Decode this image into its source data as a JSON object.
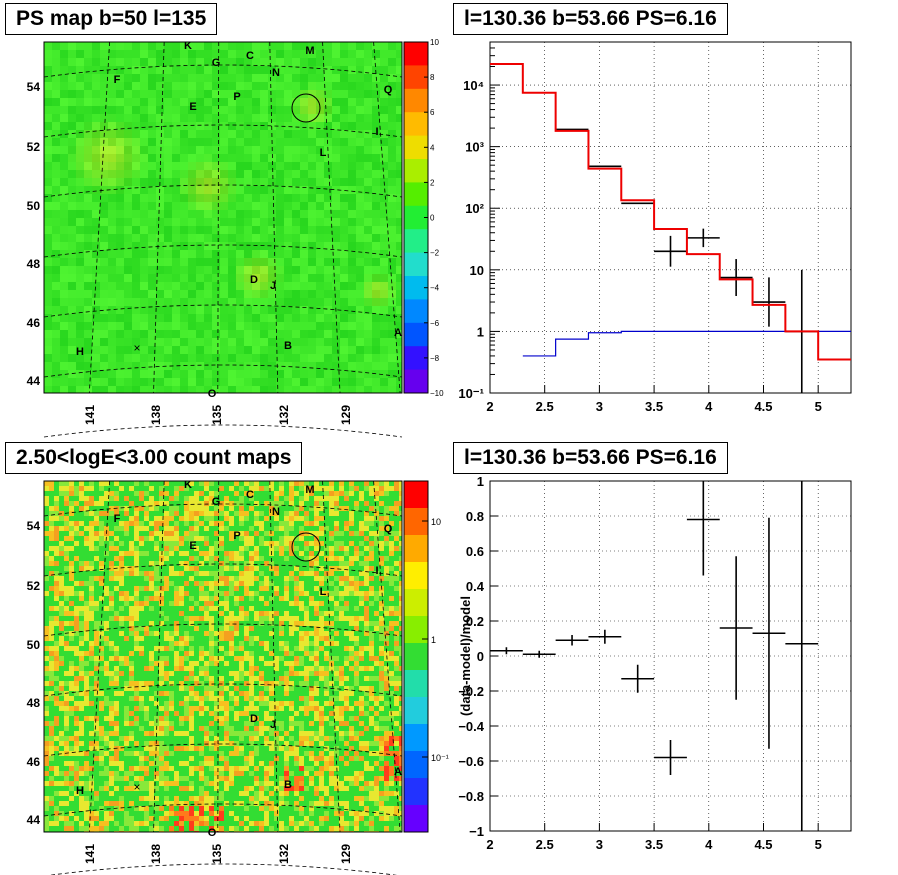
{
  "titles": {
    "tl": "PS map b=50 l=135",
    "tr": "l=130.36 b=53.66 PS=6.16",
    "bl": "2.50<logE<3.00 count maps",
    "br": "l=130.36 b=53.66 PS=6.16"
  },
  "maps": {
    "ylabels": [
      "54",
      "52",
      "50",
      "48",
      "46",
      "44"
    ],
    "xlabels": [
      "141",
      "138",
      "135",
      "132",
      "129"
    ],
    "sources": [
      "K",
      "G",
      "C",
      "M",
      "F",
      "N",
      "E",
      "P",
      "Q",
      "I",
      "L",
      "D",
      "J",
      "A",
      "H",
      "B",
      "O"
    ],
    "marker_x": "×",
    "ps_colorbar_labels": [
      "10",
      "8",
      "6",
      "4",
      "2",
      "0",
      "−2",
      "−4",
      "−6",
      "−8",
      "−10"
    ],
    "count_colorbar_labels": [
      "10",
      "1",
      "10⁻¹"
    ]
  },
  "colors": {
    "ps_map_base": "#33dd33",
    "data_series": "#000000",
    "model_series": "#ee0000",
    "background_series": "#0000cc"
  },
  "chart_data": [
    {
      "type": "heatmap",
      "title": "PS map b=50 l=135",
      "xlabel": "",
      "ylabel": "",
      "zlim": [
        -10,
        10
      ],
      "grid": true
    },
    {
      "type": "line",
      "title": "l=130.36 b=53.66 PS=6.16",
      "xlabel": "",
      "ylabel": "",
      "yscale": "log",
      "xlim": [
        2,
        5.3
      ],
      "ylim": [
        0.1,
        50000
      ],
      "grid": true,
      "x_ticks": [
        "2",
        "2.5",
        "3",
        "3.5",
        "4",
        "4.5",
        "5"
      ],
      "y_ticks": [
        "10⁻¹",
        "1",
        "10",
        "10²",
        "10³",
        "10⁴"
      ],
      "series": [
        {
          "edges": [
            2.0,
            2.3,
            2.6,
            2.9,
            3.2,
            3.5,
            3.8,
            4.1,
            4.4,
            4.7,
            5.0,
            5.3
          ],
          "values": [
            22000,
            7500,
            1800,
            440,
            135,
            46,
            18,
            7,
            2.7,
            1.0,
            0.35
          ]
        },
        {
          "edges": [
            2.0,
            2.3,
            2.6,
            2.9,
            3.2,
            3.5,
            3.8,
            4.1,
            4.4,
            4.7,
            5.0
          ],
          "values": [
            22000,
            7500,
            1900,
            480,
            120,
            20,
            33,
            7.5,
            3.0,
            1.0
          ],
          "errors": [
            0,
            0,
            0,
            0,
            0,
            0.25,
            0.15,
            0.3,
            0.4,
            1.0
          ]
        },
        {
          "edges": [
            2.3,
            2.6,
            2.9,
            3.2,
            3.5,
            3.8,
            4.1,
            4.4,
            4.7,
            5.0,
            5.3
          ],
          "values": [
            0.4,
            0.75,
            0.95,
            1.0,
            1.0,
            1.0,
            1.0,
            1.0,
            1.0,
            1.0
          ]
        }
      ]
    },
    {
      "type": "heatmap",
      "title": "2.50<logE<3.00 count maps",
      "xlabel": "",
      "ylabel": "",
      "zscale": "log",
      "zlim": [
        0.05,
        30
      ],
      "grid": true
    },
    {
      "type": "scatter",
      "title": "l=130.36 b=53.66 PS=6.16",
      "xlabel": "",
      "ylabel": "(data-model)/model",
      "xlim": [
        2,
        5.3
      ],
      "ylim": [
        -1,
        1
      ],
      "grid": true,
      "x_ticks": [
        "2",
        "2.5",
        "3",
        "3.5",
        "4",
        "4.5",
        "5"
      ],
      "y_ticks": [
        "−1",
        "−0.8",
        "−0.6",
        "−0.4",
        "−0.2",
        "0",
        "0.2",
        "0.4",
        "0.6",
        "0.8",
        "1"
      ],
      "x": [
        2.15,
        2.45,
        2.75,
        3.05,
        3.35,
        3.65,
        3.95,
        4.25,
        4.55,
        4.85
      ],
      "xerr": 0.15,
      "y": [
        0.03,
        0.01,
        0.09,
        0.11,
        -0.13,
        -0.58,
        0.78,
        0.16,
        0.13,
        0.07
      ],
      "yerr": [
        0.02,
        0.02,
        0.03,
        0.04,
        0.08,
        0.1,
        0.32,
        0.41,
        0.66,
        1.2
      ]
    }
  ]
}
